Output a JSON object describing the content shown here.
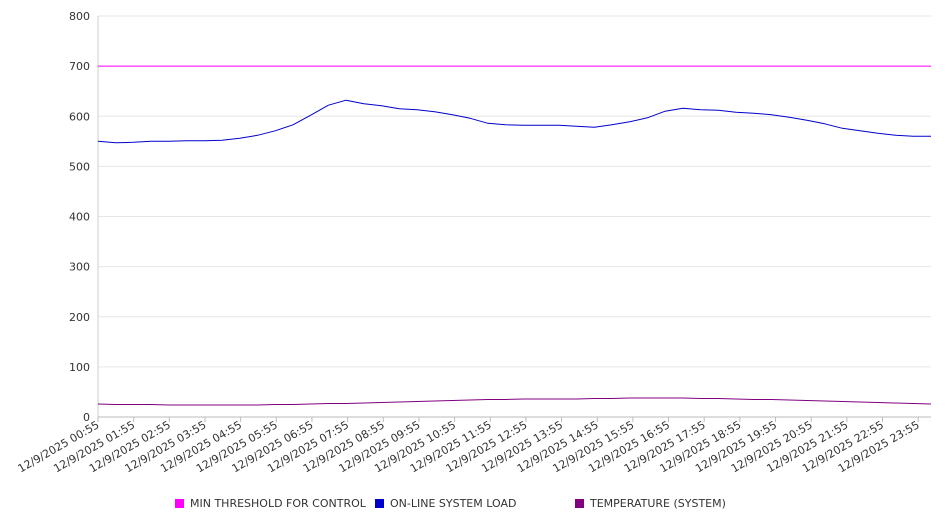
{
  "chart_data": {
    "type": "line",
    "title": "",
    "xlabel": "",
    "ylabel": "",
    "ylim": [
      0,
      800
    ],
    "y_ticks": [
      "0",
      "100",
      "200",
      "300",
      "400",
      "500",
      "600",
      "700",
      "800"
    ],
    "grid": true,
    "legend_position": "bottom",
    "x_tick_labels": [
      "12/9/2025 00:55",
      "12/9/2025 01:55",
      "12/9/2025 02:55",
      "12/9/2025 03:55",
      "12/9/2025 04:55",
      "12/9/2025 05:55",
      "12/9/2025 06:55",
      "12/9/2025 07:55",
      "12/9/2025 08:55",
      "12/9/2025 09:55",
      "12/9/2025 10:55",
      "12/9/2025 11:55",
      "12/9/2025 12:55",
      "12/9/2025 13:55",
      "12/9/2025 14:55",
      "12/9/2025 15:55",
      "12/9/2025 16:55",
      "12/9/2025 17:55",
      "12/9/2025 18:55",
      "12/9/2025 19:55",
      "12/9/2025 20:55",
      "12/9/2025 21:55",
      "12/9/2025 22:55",
      "12/9/2025 23:55"
    ],
    "x": [
      "00:55",
      "01:25",
      "01:55",
      "02:25",
      "02:55",
      "03:25",
      "03:55",
      "04:25",
      "04:55",
      "05:25",
      "05:55",
      "06:25",
      "06:55",
      "07:25",
      "07:55",
      "08:25",
      "08:55",
      "09:25",
      "09:55",
      "10:25",
      "10:55",
      "11:25",
      "11:55",
      "12:25",
      "12:55",
      "13:25",
      "13:55",
      "14:25",
      "14:55",
      "15:25",
      "15:55",
      "16:25",
      "16:55",
      "17:25",
      "17:55",
      "18:25",
      "18:55",
      "19:25",
      "19:55",
      "20:25",
      "20:55",
      "21:25",
      "21:55",
      "22:25",
      "22:55",
      "23:25",
      "23:55",
      "24:25"
    ],
    "series": [
      {
        "name": "MIN THRESHOLD FOR CONTROL",
        "color": "#ff00ff",
        "values": [
          700,
          700,
          700,
          700,
          700,
          700,
          700,
          700,
          700,
          700,
          700,
          700,
          700,
          700,
          700,
          700,
          700,
          700,
          700,
          700,
          700,
          700,
          700,
          700,
          700,
          700,
          700,
          700,
          700,
          700,
          700,
          700,
          700,
          700,
          700,
          700,
          700,
          700,
          700,
          700,
          700,
          700,
          700,
          700,
          700,
          700,
          700,
          700
        ]
      },
      {
        "name": "ON-LINE SYSTEM LOAD",
        "color": "#0000cc",
        "values": [
          550,
          547,
          548,
          550,
          550,
          551,
          551,
          552,
          556,
          562,
          571,
          583,
          602,
          622,
          632,
          625,
          621,
          615,
          613,
          609,
          603,
          596,
          586,
          583,
          582,
          582,
          582,
          580,
          578,
          583,
          589,
          597,
          610,
          616,
          613,
          612,
          608,
          606,
          603,
          598,
          592,
          585,
          576,
          571,
          566,
          562,
          560,
          560
        ]
      },
      {
        "name": "TEMPERATURE (SYSTEM)",
        "color": "#800080",
        "values": [
          26,
          25,
          25,
          25,
          24,
          24,
          24,
          24,
          24,
          24,
          25,
          25,
          26,
          27,
          27,
          28,
          29,
          30,
          31,
          32,
          33,
          34,
          35,
          35,
          36,
          36,
          36,
          36,
          37,
          37,
          38,
          38,
          38,
          38,
          37,
          37,
          36,
          35,
          35,
          34,
          33,
          32,
          31,
          30,
          29,
          28,
          27,
          26
        ]
      }
    ]
  }
}
